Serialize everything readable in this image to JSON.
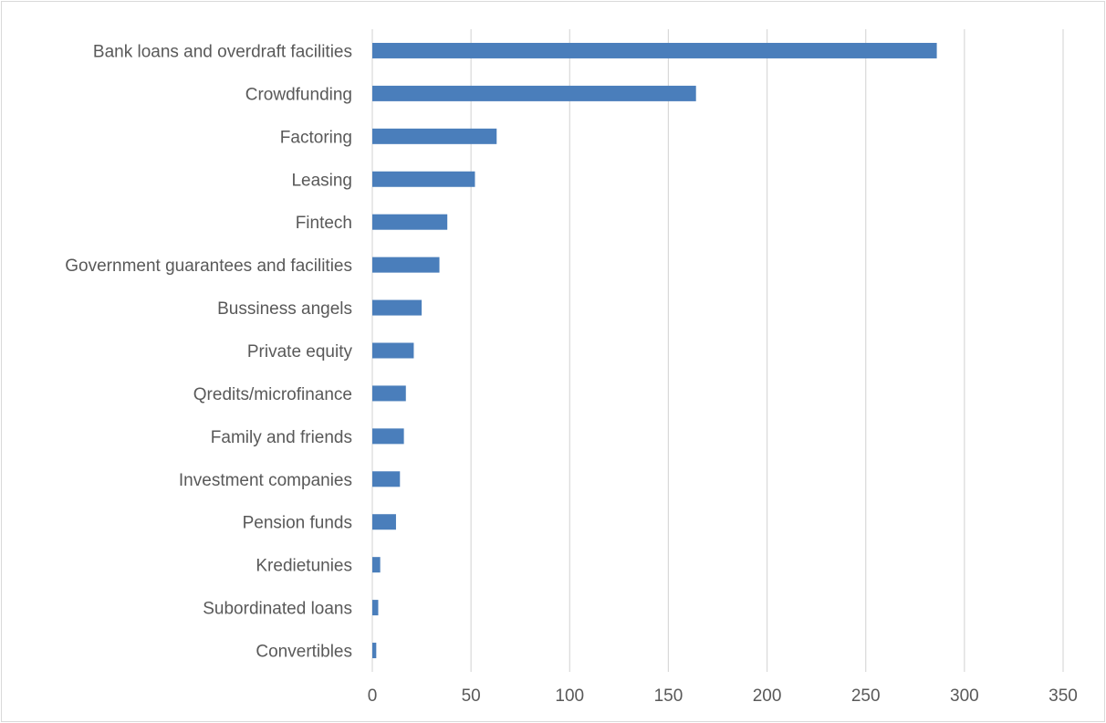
{
  "chart_data": {
    "type": "bar",
    "orientation": "horizontal",
    "title": "",
    "xlabel": "",
    "ylabel": "",
    "categories": [
      "Bank loans and overdraft facilities",
      "Crowdfunding",
      "Factoring",
      "Leasing",
      "Fintech",
      "Government guarantees and facilities",
      "Bussiness angels",
      "Private equity",
      "Qredits/microfinance",
      "Family and friends",
      "Investment companies",
      "Pension funds",
      "Kredietunies",
      "Subordinated loans",
      "Convertibles"
    ],
    "values": [
      286,
      164,
      63,
      52,
      38,
      34,
      25,
      21,
      17,
      16,
      14,
      12,
      4,
      3,
      2
    ],
    "xlim": [
      0,
      350
    ],
    "xticks": [
      0,
      50,
      100,
      150,
      200,
      250,
      300,
      350
    ],
    "grid": "vertical",
    "legend": "none",
    "bar_color": "#4a7ebb",
    "grid_color": "#d9d9d9"
  }
}
